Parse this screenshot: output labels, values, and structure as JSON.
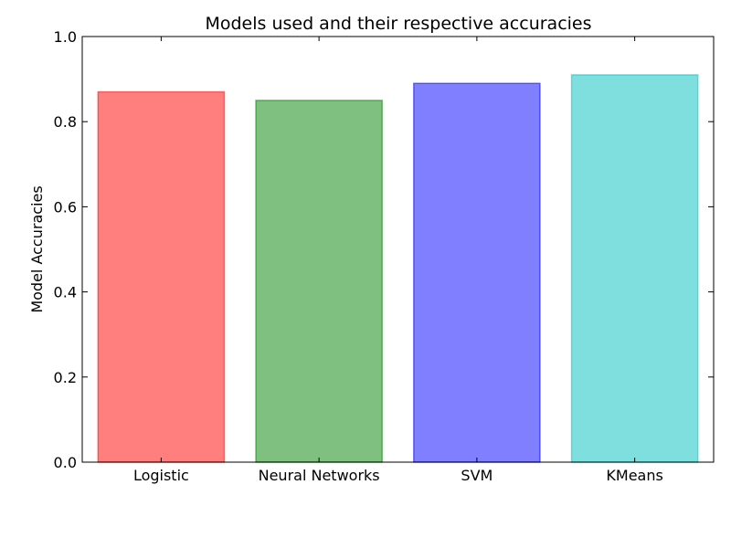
{
  "chart_data": {
    "type": "bar",
    "title": "Models used and their respective accuracies",
    "xlabel": "",
    "ylabel": "Model Accuracies",
    "categories": [
      "Logistic",
      "Neural Networks",
      "SVM",
      "KMeans"
    ],
    "values": [
      0.87,
      0.85,
      0.89,
      0.91
    ],
    "colors": [
      "#ff0000",
      "#008000",
      "#0000ff",
      "#00bfbf"
    ],
    "bar_alpha": 0.5,
    "ylim": [
      0,
      1.0
    ],
    "yticks": [
      "0.0",
      "0.2",
      "0.4",
      "0.6",
      "0.8",
      "1.0"
    ],
    "grid": false,
    "legend": "none"
  }
}
